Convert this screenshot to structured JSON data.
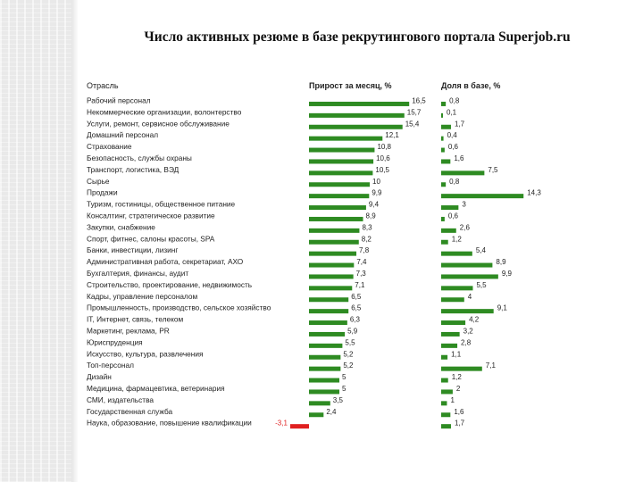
{
  "slide": {
    "title": "Число активных резюме в базе рекрутингового портала Superjob.ru"
  },
  "colors": {
    "bar": "#2e8b22",
    "negative_bar": "#e02020",
    "text": "#222222"
  },
  "chart_data": {
    "type": "bar",
    "orientation": "horizontal",
    "category_header": "Отрасль",
    "categories": [
      "Рабочий персонал",
      "Некоммерческие организации, волонтерство",
      "Услуги, ремонт, сервисное обслуживание",
      "Домашний персонал",
      "Страхование",
      "Безопасность, службы охраны",
      "Транспорт, логистика, ВЭД",
      "Сырье",
      "Продажи",
      "Туризм, гостиницы, общественное питание",
      "Консалтинг, стратегическое развитие",
      "Закупки, снабжение",
      "Спорт, фитнес, салоны красоты, SPA",
      "Банки, инвестиции, лизинг",
      "Административная работа, секретариат, АХО",
      "Бухгалтерия, финансы, аудит",
      "Строительство, проектирование, недвижимость",
      "Кадры, управление персоналом",
      "Промышленность, производство, сельское хозяйство",
      "IT, Интернет, связь, телеком",
      "Маркетинг, реклама, PR",
      "Юриспруденция",
      "Искусство, культура, развлечения",
      "Топ-персонал",
      "Дизайн",
      "Медицина, фармацевтика, ветеринария",
      "СМИ, издательства",
      "Государственная служба",
      "Наука, образование, повышение квалификации"
    ],
    "series": [
      {
        "name": "Прирост за месяц, %",
        "values": [
          16.5,
          15.7,
          15.4,
          12.1,
          10.8,
          10.6,
          10.5,
          10,
          9.9,
          9.4,
          8.9,
          8.3,
          8.2,
          7.8,
          7.4,
          7.3,
          7.1,
          6.5,
          6.5,
          6.3,
          5.9,
          5.5,
          5.2,
          5.2,
          5,
          5,
          3.5,
          2.4,
          -3.1
        ],
        "labels": [
          "16,5",
          "15,7",
          "15,4",
          "12,1",
          "10,8",
          "10,6",
          "10,5",
          "10",
          "9,9",
          "9,4",
          "8,9",
          "8,3",
          "8,2",
          "7,8",
          "7,4",
          "7,3",
          "7,1",
          "6,5",
          "6,5",
          "6,3",
          "5,9",
          "5,5",
          "5,2",
          "5,2",
          "5",
          "5",
          "3,5",
          "2,4",
          "-3,1"
        ]
      },
      {
        "name": "Доля в базе, %",
        "values": [
          0.8,
          0.1,
          1.7,
          0.4,
          0.6,
          1.6,
          7.5,
          0.8,
          14.3,
          3,
          0.6,
          2.6,
          1.2,
          5.4,
          8.9,
          9.9,
          5.5,
          4,
          9.1,
          4.2,
          3.2,
          2.8,
          1.1,
          7.1,
          1.2,
          2,
          1,
          1.6,
          1.7
        ],
        "labels": [
          "0,8",
          "0,1",
          "1,7",
          "0,4",
          "0,6",
          "1,6",
          "7,5",
          "0,8",
          "14,3",
          "3",
          "0,6",
          "2,6",
          "1,2",
          "5,4",
          "8,9",
          "9,9",
          "5,5",
          "4",
          "9,1",
          "4,2",
          "3,2",
          "2,8",
          "1,1",
          "7,1",
          "1,2",
          "2",
          "1",
          "1,6",
          "1,7"
        ]
      }
    ],
    "legend": "none",
    "grid": false
  }
}
